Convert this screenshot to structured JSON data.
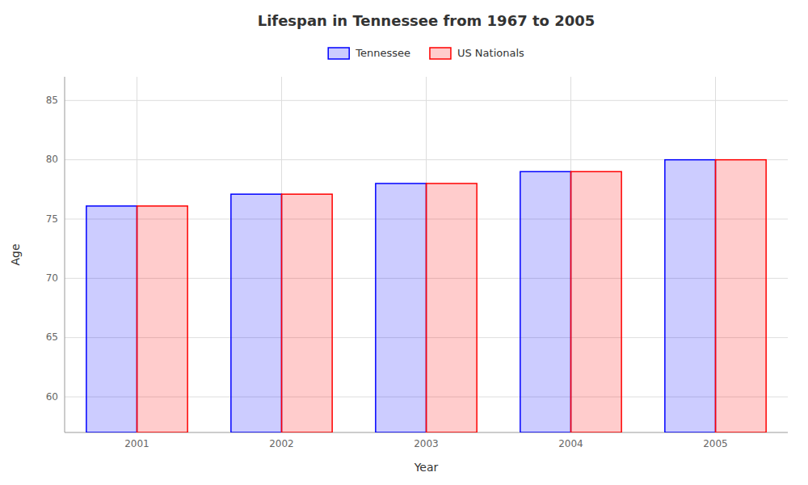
{
  "chart_data": {
    "type": "bar",
    "title": "Lifespan in Tennessee from 1967 to 2005",
    "xlabel": "Year",
    "ylabel": "Age",
    "categories": [
      "2001",
      "2002",
      "2003",
      "2004",
      "2005"
    ],
    "series": [
      {
        "name": "Tennessee",
        "color": "#0000ff",
        "values": [
          76.1,
          77.1,
          78.0,
          79.0,
          80.0
        ]
      },
      {
        "name": "US Nationals",
        "color": "#ff0000",
        "values": [
          76.1,
          77.1,
          78.0,
          79.0,
          80.0
        ]
      }
    ],
    "ylim": [
      57,
      87
    ],
    "yticks": [
      60,
      65,
      70,
      75,
      80,
      85
    ],
    "grid": true,
    "legend": "top"
  }
}
